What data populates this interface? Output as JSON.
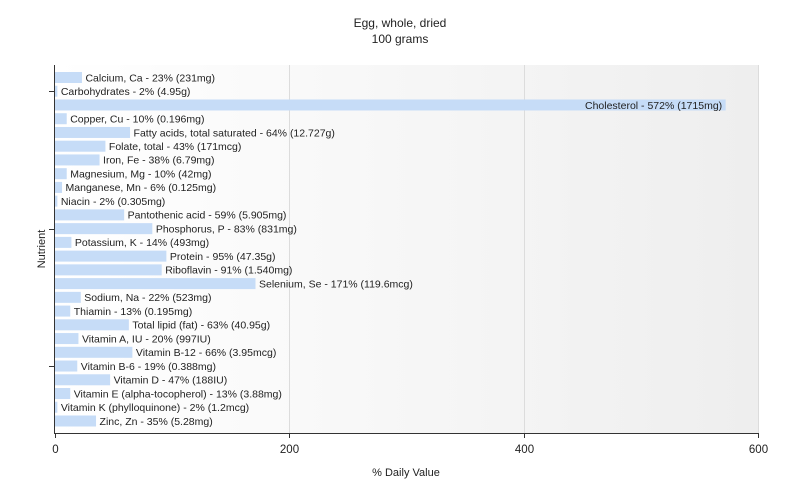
{
  "chart_data": {
    "type": "bar",
    "orientation": "horizontal",
    "title": "Egg, whole, dried",
    "subtitle": "100 grams",
    "xlabel": "% Daily Value",
    "ylabel": "Nutrient",
    "xlim": [
      0,
      600
    ],
    "xticks": [
      "0",
      "200",
      "400",
      "600"
    ],
    "grid": true,
    "bar_color": "#c6dcf7",
    "categories": [
      "Calcium, Ca",
      "Carbohydrates",
      "Cholesterol",
      "Copper, Cu",
      "Fatty acids, total saturated",
      "Folate, total",
      "Iron, Fe",
      "Magnesium, Mg",
      "Manganese, Mn",
      "Niacin",
      "Pantothenic acid",
      "Phosphorus, P",
      "Potassium, K",
      "Protein",
      "Riboflavin",
      "Selenium, Se",
      "Sodium, Na",
      "Thiamin",
      "Total lipid (fat)",
      "Vitamin A, IU",
      "Vitamin B-12",
      "Vitamin B-6",
      "Vitamin D",
      "Vitamin E (alpha-tocopherol)",
      "Vitamin K (phylloquinone)",
      "Zinc, Zn"
    ],
    "values": [
      23,
      2,
      572,
      10,
      64,
      43,
      38,
      10,
      6,
      2,
      59,
      83,
      14,
      95,
      91,
      171,
      22,
      13,
      63,
      20,
      66,
      19,
      47,
      13,
      2,
      35
    ],
    "labels": [
      "Calcium, Ca - 23% (231mg)",
      "Carbohydrates - 2% (4.95g)",
      "Cholesterol - 572% (1715mg)",
      "Copper, Cu - 10% (0.196mg)",
      "Fatty acids, total saturated - 64% (12.727g)",
      "Folate, total - 43% (171mcg)",
      "Iron, Fe - 38% (6.79mg)",
      "Magnesium, Mg - 10% (42mg)",
      "Manganese, Mn - 6% (0.125mg)",
      "Niacin - 2% (0.305mg)",
      "Pantothenic acid - 59% (5.905mg)",
      "Phosphorus, P - 83% (831mg)",
      "Potassium, K - 14% (493mg)",
      "Protein - 95% (47.35g)",
      "Riboflavin - 91% (1.540mg)",
      "Selenium, Se - 171% (119.6mcg)",
      "Sodium, Na - 22% (523mg)",
      "Thiamin - 13% (0.195mg)",
      "Total lipid (fat) - 63% (40.95g)",
      "Vitamin A, IU - 20% (997IU)",
      "Vitamin B-12 - 66% (3.95mcg)",
      "Vitamin B-6 - 19% (0.388mg)",
      "Vitamin D - 47% (188IU)",
      "Vitamin E (alpha-tocopherol) - 13% (3.88mg)",
      "Vitamin K (phylloquinone) - 2% (1.2mcg)",
      "Zinc, Zn - 35% (5.28mg)"
    ]
  }
}
